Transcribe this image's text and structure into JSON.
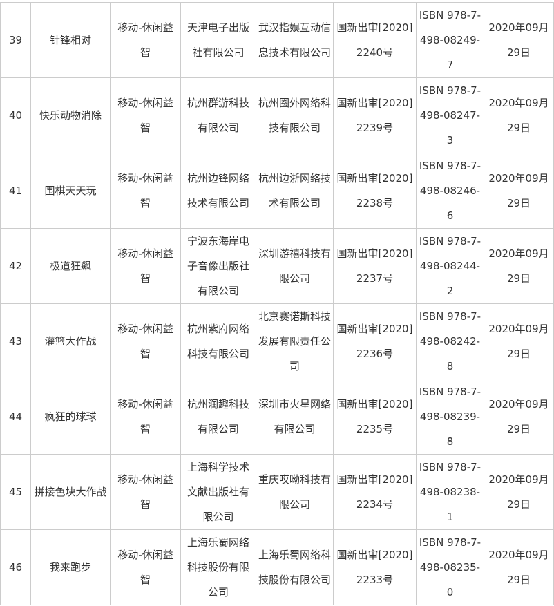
{
  "rows": [
    {
      "no": "39",
      "name": "针锋相对",
      "category": "移动-休闲益智",
      "publisher": "天津电子出版社有限公司",
      "operator": "武汉指娱互动信息技术有限公司",
      "approval": "国新出审[2020]2240号",
      "isbn": "ISBN 978-7-498-08249-7",
      "date": "2020年09月29日"
    },
    {
      "no": "40",
      "name": "快乐动物消除",
      "category": "移动-休闲益智",
      "publisher": "杭州群游科技有限公司",
      "operator": "杭州圈外网络科技有限公司",
      "approval": "国新出审[2020]2239号",
      "isbn": "ISBN 978-7-498-08247-3",
      "date": "2020年09月29日"
    },
    {
      "no": "41",
      "name": "围棋天天玩",
      "category": "移动-休闲益智",
      "publisher": "杭州边锋网络技术有限公司",
      "operator": "杭州边浙网络技术有限公司",
      "approval": "国新出审[2020]2238号",
      "isbn": "ISBN 978-7-498-08246-6",
      "date": "2020年09月29日"
    },
    {
      "no": "42",
      "name": "极道狂飙",
      "category": "移动-休闲益智",
      "publisher": "宁波东海岸电子音像出版社有限公司",
      "operator": "深圳游禧科技有限公司",
      "approval": "国新出审[2020]2237号",
      "isbn": "ISBN 978-7-498-08244-2",
      "date": "2020年09月29日"
    },
    {
      "no": "43",
      "name": "灌篮大作战",
      "category": "移动-休闲益智",
      "publisher": "杭州紫府网络科技有限公司",
      "operator": "北京赛诺斯科技发展有限责任公司",
      "approval": "国新出审[2020]2236号",
      "isbn": "ISBN 978-7-498-08242-8",
      "date": "2020年09月29日"
    },
    {
      "no": "44",
      "name": "疯狂的球球",
      "category": "移动-休闲益智",
      "publisher": "杭州润趣科技有限公司",
      "operator": "深圳市火星网络有限公司",
      "approval": "国新出审[2020]2235号",
      "isbn": "ISBN 978-7-498-08239-8",
      "date": "2020年09月29日"
    },
    {
      "no": "45",
      "name": "拼接色块大作战",
      "category": "移动-休闲益智",
      "publisher": "上海科学技术文献出版社有限公司",
      "operator": "重庆哎呦科技有限公司",
      "approval": "国新出审[2020]2234号",
      "isbn": "ISBN 978-7-498-08238-1",
      "date": "2020年09月29日"
    },
    {
      "no": "46",
      "name": "我来跑步",
      "category": "移动-休闲益智",
      "publisher": "上海乐蜀网络科技股份有限公司",
      "operator": "上海乐蜀网络科技股份有限公司",
      "approval": "国新出审[2020]2233号",
      "isbn": "ISBN 978-7-498-08235-0",
      "date": "2020年09月29日"
    }
  ]
}
